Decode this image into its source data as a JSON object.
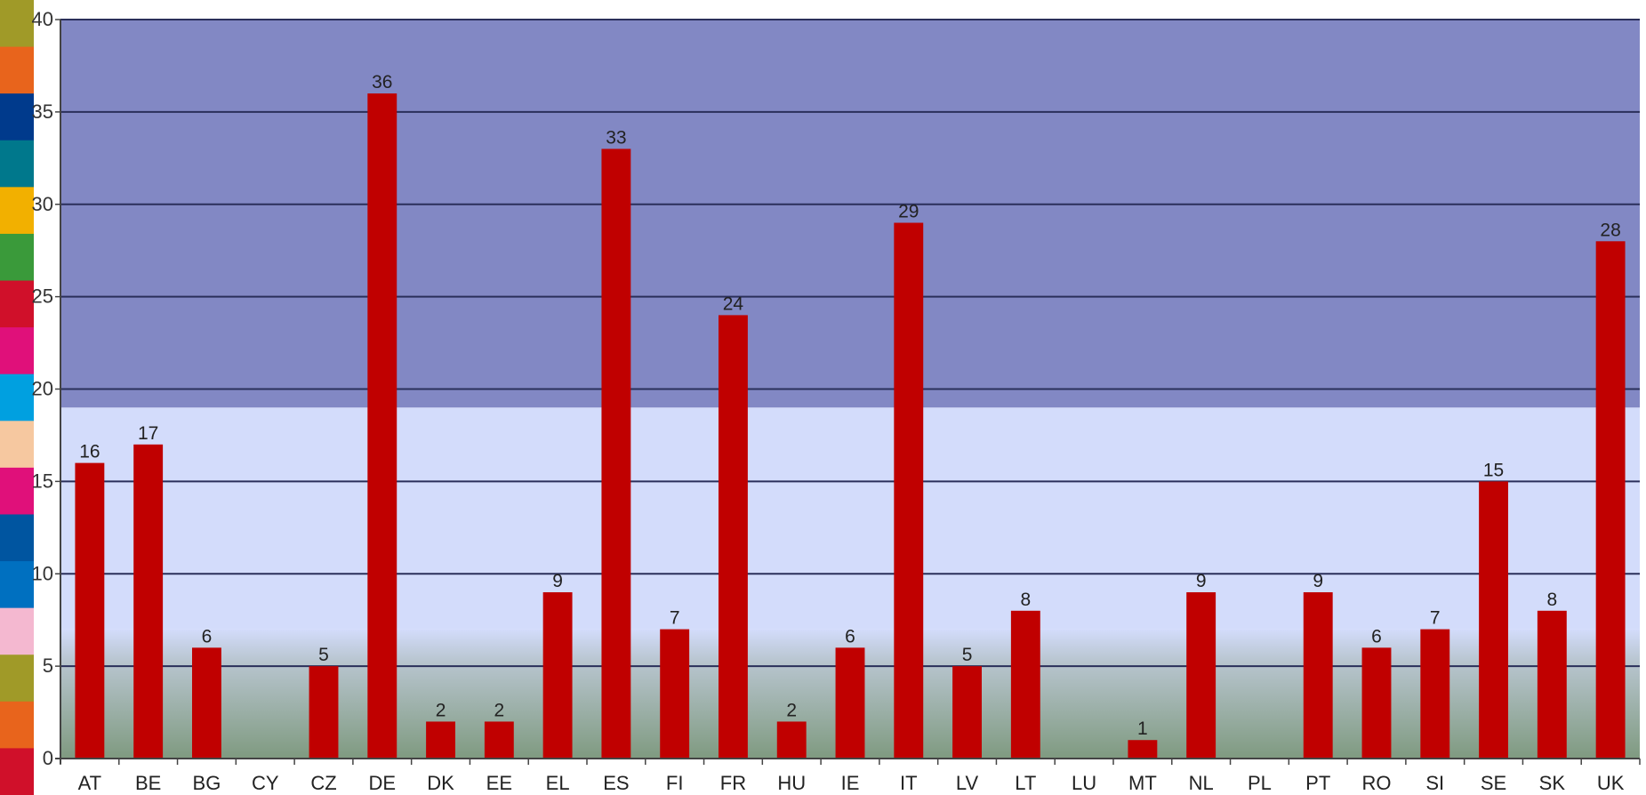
{
  "chart_data": {
    "type": "bar",
    "title": "",
    "xlabel": "",
    "ylabel": "",
    "ylim": [
      0,
      40
    ],
    "yticks": [
      0,
      5,
      10,
      15,
      20,
      25,
      30,
      35,
      40
    ],
    "grid": true,
    "legend": "none",
    "categories": [
      "AT",
      "BE",
      "BG",
      "CY",
      "CZ",
      "DE",
      "DK",
      "EE",
      "EL",
      "ES",
      "FI",
      "FR",
      "HU",
      "IE",
      "IT",
      "LV",
      "LT",
      "LU",
      "MT",
      "NL",
      "PL",
      "PT",
      "RO",
      "SI",
      "SE",
      "SK",
      "UK"
    ],
    "values": [
      16,
      17,
      6,
      null,
      5,
      36,
      2,
      2,
      9,
      33,
      7,
      24,
      2,
      6,
      29,
      5,
      8,
      null,
      1,
      9,
      null,
      9,
      6,
      7,
      15,
      8,
      28
    ],
    "data_labels": [
      "16",
      "17",
      "6",
      "",
      "5",
      "36",
      "2",
      "2",
      "9",
      "33",
      "7",
      "24",
      "2",
      "6",
      "29",
      "5",
      "8",
      "",
      "1",
      "9",
      "",
      "9",
      "6",
      "7",
      "15",
      "8",
      "28"
    ],
    "bands": [
      {
        "from": 0,
        "to": 7,
        "color": "#7f9a80"
      },
      {
        "from": 7,
        "to": 19,
        "color": "#d3dcfb"
      },
      {
        "from": 19,
        "to": 40,
        "color": "#8288c4"
      }
    ],
    "colors": {
      "bar": "#c00000",
      "gridline": "#2a2f5a",
      "axis": "#444444"
    },
    "side_strip_colors": [
      "#a09a28",
      "#e8641c",
      "#003a8c",
      "#00788c",
      "#f2b000",
      "#3a9a3a",
      "#d0102a",
      "#e0107a",
      "#00a0e0",
      "#f6c8a0",
      "#e0107a",
      "#0055a0",
      "#0070c0",
      "#f4b8d0",
      "#a09a28",
      "#e8641c",
      "#d0102a"
    ]
  }
}
